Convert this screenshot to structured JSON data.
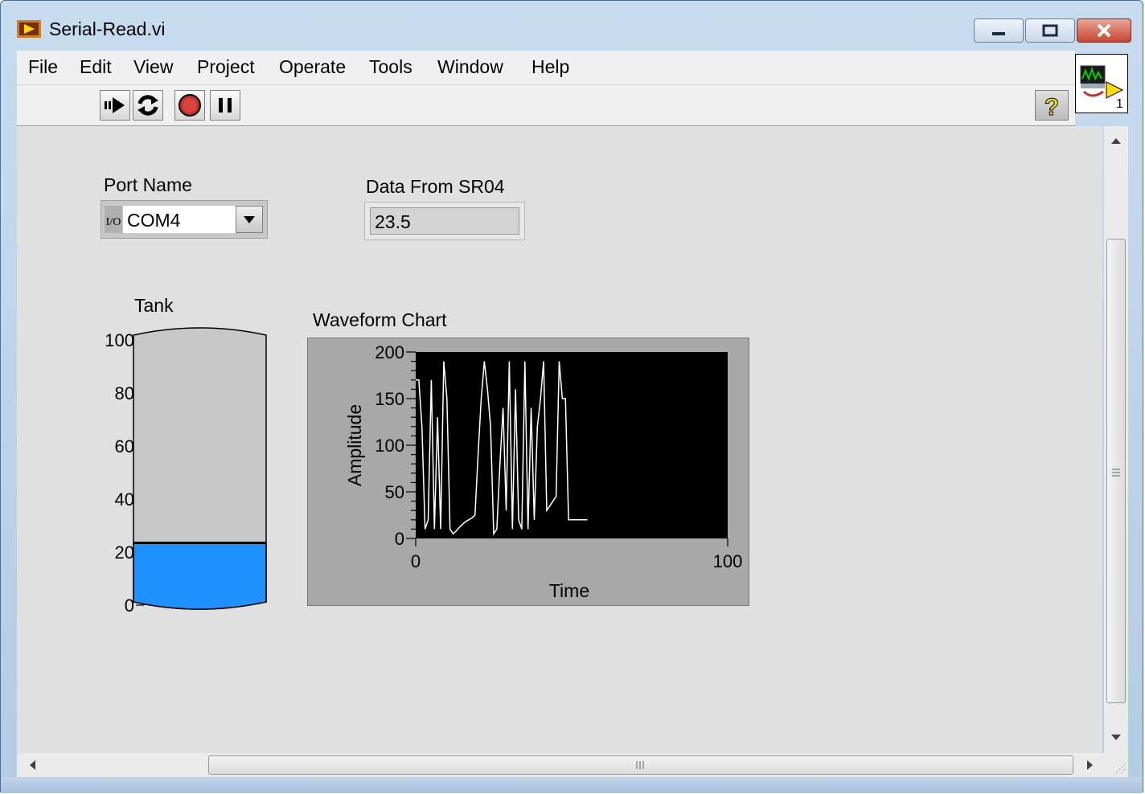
{
  "window": {
    "title": "Serial-Read.vi",
    "minimize_icon": "minimize-icon",
    "maximize_icon": "maximize-icon",
    "close_icon": "close-icon"
  },
  "menu": [
    "File",
    "Edit",
    "View",
    "Project",
    "Operate",
    "Tools",
    "Window",
    "Help"
  ],
  "toolbar": {
    "icons": [
      "run-arrow-icon",
      "run-continuously-icon",
      "abort-execution-icon",
      "pause-icon"
    ],
    "help_label": "?"
  },
  "vi_icon": {
    "number": "1"
  },
  "controls": {
    "port_name": {
      "label": "Port Name",
      "io_glyph": "I/O",
      "value": "COM4"
    },
    "data_from_sr04": {
      "label": "Data From SR04",
      "value": "23.5"
    }
  },
  "tank": {
    "label": "Tank",
    "level": 23.5,
    "scale_max": 100,
    "ticks": [
      "0",
      "20",
      "40",
      "60",
      "80",
      "100"
    ],
    "fill_color": "#1e90ff"
  },
  "chart_data": {
    "type": "line",
    "title": "Waveform Chart",
    "xlabel": "Time",
    "ylabel": "Amplitude",
    "xlim": [
      0,
      100
    ],
    "ylim": [
      0,
      200
    ],
    "xticks": [
      "0",
      "100"
    ],
    "yticks": [
      "0",
      "50",
      "100",
      "150",
      "200"
    ],
    "plot_bg": "#000000",
    "line_color": "#ffffff",
    "series": [
      {
        "values": [
          170,
          170,
          120,
          10,
          20,
          170,
          10,
          130,
          10,
          190,
          150,
          10,
          5,
          8,
          12,
          15,
          18,
          20,
          22,
          25,
          90,
          150,
          190,
          160,
          120,
          5,
          10,
          80,
          140,
          30,
          190,
          10,
          160,
          20,
          10,
          190,
          10,
          140,
          20,
          120,
          150,
          190,
          30,
          35,
          40,
          45,
          190,
          150,
          150,
          20,
          20,
          20,
          20,
          20,
          20,
          20
        ]
      }
    ]
  }
}
